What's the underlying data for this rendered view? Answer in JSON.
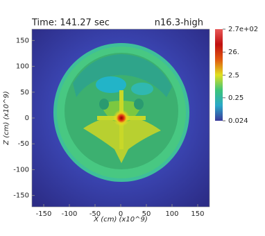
{
  "chart_data": {
    "type": "image",
    "title_left": "Time: 141.27 sec",
    "title_right": "n16.3-high",
    "x_label": "X (cm) (x10^9)",
    "y_label": "Z (cm) (x10^9)",
    "xlim": [
      -173,
      173
    ],
    "ylim": [
      -172,
      172
    ],
    "xticks": [
      -150,
      -100,
      -50,
      0,
      50,
      100,
      150
    ],
    "yticks": [
      -150,
      -100,
      -50,
      0,
      50,
      100,
      150
    ],
    "colorbar_log": true,
    "clim": [
      0.024,
      270
    ],
    "cticks": [
      {
        "value": 270,
        "label": "2.7e+02"
      },
      {
        "value": 26,
        "label": "26."
      },
      2.5,
      0.25,
      0.024
    ],
    "colormap": [
      "#3a3a9a",
      "#2aa8c8",
      "#3cc47a",
      "#e0e020",
      "#e05a10",
      "#c01010",
      "#e85858"
    ]
  }
}
